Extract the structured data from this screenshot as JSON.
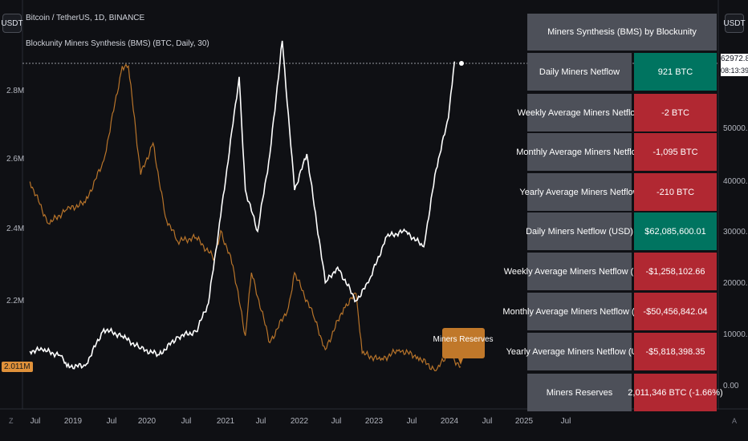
{
  "symbol_button": "USDT",
  "scale_button": "USDT",
  "header": {
    "line1": "Bitcoin / TetherUS, 1D, BINANCE",
    "line2": "Blockunity Miners Synthesis (BMS) (BTC, Daily, 30)"
  },
  "left_axis": [
    "2.8M",
    "2.6M",
    "2.4M",
    "2.2M"
  ],
  "left_axis_badge": "2.011M",
  "right_axis": [
    "50000.00",
    "40000.00",
    "30000.00",
    "20000.00",
    "10000.00",
    "0.00"
  ],
  "price_badge": {
    "price": "62972.84",
    "countdown": "08:13:39"
  },
  "x_axis": [
    "Jul",
    "2019",
    "Jul",
    "2020",
    "Jul",
    "2021",
    "Jul",
    "2022",
    "Jul",
    "2023",
    "Jul",
    "2024",
    "Jul",
    "2025",
    "Jul"
  ],
  "corner_left": "Z",
  "corner_right": "A",
  "chart_label": "Miners Reserves",
  "table": {
    "title": "Miners Synthesis (BMS) by Blockunity",
    "rows": [
      {
        "label": "Daily Miners Netflow",
        "value": "921 BTC",
        "status": "pos"
      },
      {
        "label": "Weekly Average Miners Netflow",
        "value": "-2 BTC",
        "status": "neg"
      },
      {
        "label": "Monthly Average Miners Netflow",
        "value": "-1,095 BTC",
        "status": "neg"
      },
      {
        "label": "Yearly Average Miners Netflow",
        "value": "-210 BTC",
        "status": "neg"
      },
      {
        "label": "Daily Miners Netflow (USD)",
        "value": "$62,085,600.01",
        "status": "pos"
      },
      {
        "label": "Weekly Average Miners Netflow (USD)",
        "value": "-$1,258,102.66",
        "status": "neg"
      },
      {
        "label": "Monthly Average Miners Netflow (USD)",
        "value": "-$50,456,842.04",
        "status": "neg"
      },
      {
        "label": "Yearly Average Miners Netflow (USD)",
        "value": "-$5,818,398.35",
        "status": "neg"
      },
      {
        "label": "Miners Reserves",
        "value": "2,011,346 BTC (-1.66%)",
        "status": "neg"
      }
    ]
  },
  "colors": {
    "price_line": "#ffffff",
    "reserves_line": "#b8742a",
    "positive": "#007460",
    "negative": "#b12832"
  },
  "chart_data": [
    {
      "type": "line",
      "series": [
        {
          "name": "Miners Reserves",
          "x": [
            "2018-06",
            "2018-09",
            "2018-12",
            "2019-03",
            "2019-06",
            "2019-09",
            "2019-10",
            "2019-12",
            "2020-02",
            "2020-04",
            "2020-06",
            "2020-09",
            "2020-12",
            "2021-01",
            "2021-03",
            "2021-05",
            "2021-06",
            "2021-09",
            "2021-12",
            "2022-01",
            "2022-04",
            "2022-06",
            "2022-09",
            "2022-11",
            "2022-12",
            "2023-03",
            "2023-06",
            "2023-09",
            "2023-12",
            "2024-02",
            "2024-04"
          ],
          "values": [
            2540000,
            2420000,
            2460000,
            2480000,
            2600000,
            2870000,
            2870000,
            2560000,
            2650000,
            2440000,
            2370000,
            2380000,
            2320000,
            2400000,
            2300000,
            2100000,
            2280000,
            2080000,
            2180000,
            2280000,
            2160000,
            2060000,
            2180000,
            2220000,
            2050000,
            2030000,
            2060000,
            2040000,
            2000000,
            2050000,
            2011346
          ]
        }
      ],
      "ylabel_ticks": [
        "2.8M",
        "2.6M",
        "2.4M",
        "2.2M"
      ]
    },
    {
      "type": "line",
      "series": [
        {
          "name": "Bitcoin / TetherUS",
          "x": [
            "2018-06",
            "2018-08",
            "2018-11",
            "2018-12",
            "2019-03",
            "2019-06",
            "2019-09",
            "2019-12",
            "2020-03",
            "2020-06",
            "2020-09",
            "2020-11",
            "2021-01",
            "2021-04",
            "2021-05",
            "2021-07",
            "2021-09",
            "2021-11",
            "2022-01",
            "2022-03",
            "2022-06",
            "2022-08",
            "2022-11",
            "2023-01",
            "2023-04",
            "2023-07",
            "2023-10",
            "2023-12",
            "2024-02",
            "2024-03"
          ],
          "values": [
            6700,
            7000,
            5800,
            3700,
            3900,
            11000,
            9600,
            7200,
            6000,
            9500,
            10500,
            16000,
            33000,
            60000,
            38000,
            30000,
            45000,
            67000,
            38000,
            45000,
            20000,
            23000,
            16500,
            20000,
            29000,
            30000,
            27000,
            42000,
            52000,
            62972.84
          ]
        }
      ],
      "ylabel_ticks": [
        "50000.00",
        "40000.00",
        "30000.00",
        "20000.00",
        "10000.00",
        "0.00"
      ]
    }
  ]
}
